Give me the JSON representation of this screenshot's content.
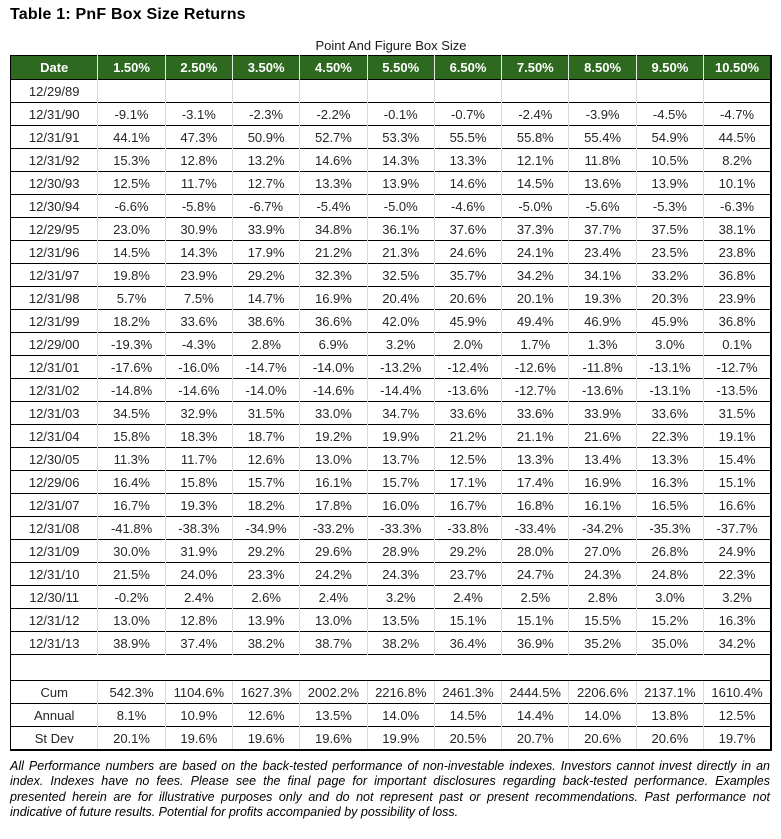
{
  "page_title": "Table 1: PnF Box Size Returns",
  "table": {
    "subtitle": "Point And Figure Box Size",
    "columns": [
      "Date",
      "1.50%",
      "2.50%",
      "3.50%",
      "4.50%",
      "5.50%",
      "6.50%",
      "7.50%",
      "8.50%",
      "9.50%",
      "10.50%"
    ],
    "rows": [
      {
        "date": "12/29/89",
        "values": [
          "",
          "",
          "",
          "",
          "",
          "",
          "",
          "",
          "",
          ""
        ]
      },
      {
        "date": "12/31/90",
        "values": [
          "-9.1%",
          "-3.1%",
          "-2.3%",
          "-2.2%",
          "-0.1%",
          "-0.7%",
          "-2.4%",
          "-3.9%",
          "-4.5%",
          "-4.7%"
        ]
      },
      {
        "date": "12/31/91",
        "values": [
          "44.1%",
          "47.3%",
          "50.9%",
          "52.7%",
          "53.3%",
          "55.5%",
          "55.8%",
          "55.4%",
          "54.9%",
          "44.5%"
        ]
      },
      {
        "date": "12/31/92",
        "values": [
          "15.3%",
          "12.8%",
          "13.2%",
          "14.6%",
          "14.3%",
          "13.3%",
          "12.1%",
          "11.8%",
          "10.5%",
          "8.2%"
        ]
      },
      {
        "date": "12/30/93",
        "values": [
          "12.5%",
          "11.7%",
          "12.7%",
          "13.3%",
          "13.9%",
          "14.6%",
          "14.5%",
          "13.6%",
          "13.9%",
          "10.1%"
        ]
      },
      {
        "date": "12/30/94",
        "values": [
          "-6.6%",
          "-5.8%",
          "-6.7%",
          "-5.4%",
          "-5.0%",
          "-4.6%",
          "-5.0%",
          "-5.6%",
          "-5.3%",
          "-6.3%"
        ]
      },
      {
        "date": "12/29/95",
        "values": [
          "23.0%",
          "30.9%",
          "33.9%",
          "34.8%",
          "36.1%",
          "37.6%",
          "37.3%",
          "37.7%",
          "37.5%",
          "38.1%"
        ]
      },
      {
        "date": "12/31/96",
        "values": [
          "14.5%",
          "14.3%",
          "17.9%",
          "21.2%",
          "21.3%",
          "24.6%",
          "24.1%",
          "23.4%",
          "23.5%",
          "23.8%"
        ]
      },
      {
        "date": "12/31/97",
        "values": [
          "19.8%",
          "23.9%",
          "29.2%",
          "32.3%",
          "32.5%",
          "35.7%",
          "34.2%",
          "34.1%",
          "33.2%",
          "36.8%"
        ]
      },
      {
        "date": "12/31/98",
        "values": [
          "5.7%",
          "7.5%",
          "14.7%",
          "16.9%",
          "20.4%",
          "20.6%",
          "20.1%",
          "19.3%",
          "20.3%",
          "23.9%"
        ]
      },
      {
        "date": "12/31/99",
        "values": [
          "18.2%",
          "33.6%",
          "38.6%",
          "36.6%",
          "42.0%",
          "45.9%",
          "49.4%",
          "46.9%",
          "45.9%",
          "36.8%"
        ]
      },
      {
        "date": "12/29/00",
        "values": [
          "-19.3%",
          "-4.3%",
          "2.8%",
          "6.9%",
          "3.2%",
          "2.0%",
          "1.7%",
          "1.3%",
          "3.0%",
          "0.1%"
        ]
      },
      {
        "date": "12/31/01",
        "values": [
          "-17.6%",
          "-16.0%",
          "-14.7%",
          "-14.0%",
          "-13.2%",
          "-12.4%",
          "-12.6%",
          "-11.8%",
          "-13.1%",
          "-12.7%"
        ]
      },
      {
        "date": "12/31/02",
        "values": [
          "-14.8%",
          "-14.6%",
          "-14.0%",
          "-14.6%",
          "-14.4%",
          "-13.6%",
          "-12.7%",
          "-13.6%",
          "-13.1%",
          "-13.5%"
        ]
      },
      {
        "date": "12/31/03",
        "values": [
          "34.5%",
          "32.9%",
          "31.5%",
          "33.0%",
          "34.7%",
          "33.6%",
          "33.6%",
          "33.9%",
          "33.6%",
          "31.5%"
        ]
      },
      {
        "date": "12/31/04",
        "values": [
          "15.8%",
          "18.3%",
          "18.7%",
          "19.2%",
          "19.9%",
          "21.2%",
          "21.1%",
          "21.6%",
          "22.3%",
          "19.1%"
        ]
      },
      {
        "date": "12/30/05",
        "values": [
          "11.3%",
          "11.7%",
          "12.6%",
          "13.0%",
          "13.7%",
          "12.5%",
          "13.3%",
          "13.4%",
          "13.3%",
          "15.4%"
        ]
      },
      {
        "date": "12/29/06",
        "values": [
          "16.4%",
          "15.8%",
          "15.7%",
          "16.1%",
          "15.7%",
          "17.1%",
          "17.4%",
          "16.9%",
          "16.3%",
          "15.1%"
        ]
      },
      {
        "date": "12/31/07",
        "values": [
          "16.7%",
          "19.3%",
          "18.2%",
          "17.8%",
          "16.0%",
          "16.7%",
          "16.8%",
          "16.1%",
          "16.5%",
          "16.6%"
        ]
      },
      {
        "date": "12/31/08",
        "values": [
          "-41.8%",
          "-38.3%",
          "-34.9%",
          "-33.2%",
          "-33.3%",
          "-33.8%",
          "-33.4%",
          "-34.2%",
          "-35.3%",
          "-37.7%"
        ]
      },
      {
        "date": "12/31/09",
        "values": [
          "30.0%",
          "31.9%",
          "29.2%",
          "29.6%",
          "28.9%",
          "29.2%",
          "28.0%",
          "27.0%",
          "26.8%",
          "24.9%"
        ]
      },
      {
        "date": "12/31/10",
        "values": [
          "21.5%",
          "24.0%",
          "23.3%",
          "24.2%",
          "24.3%",
          "23.7%",
          "24.7%",
          "24.3%",
          "24.8%",
          "22.3%"
        ]
      },
      {
        "date": "12/30/11",
        "values": [
          "-0.2%",
          "2.4%",
          "2.6%",
          "2.4%",
          "3.2%",
          "2.4%",
          "2.5%",
          "2.8%",
          "3.0%",
          "3.2%"
        ]
      },
      {
        "date": "12/31/12",
        "values": [
          "13.0%",
          "12.8%",
          "13.9%",
          "13.0%",
          "13.5%",
          "15.1%",
          "15.1%",
          "15.5%",
          "15.2%",
          "16.3%"
        ]
      },
      {
        "date": "12/31/13",
        "values": [
          "38.9%",
          "37.4%",
          "38.2%",
          "38.7%",
          "38.2%",
          "36.4%",
          "36.9%",
          "35.2%",
          "35.0%",
          "34.2%"
        ]
      }
    ],
    "summary_rows": [
      {
        "label": "Cum",
        "values": [
          "542.3%",
          "1104.6%",
          "1627.3%",
          "2002.2%",
          "2216.8%",
          "2461.3%",
          "2444.5%",
          "2206.6%",
          "2137.1%",
          "1610.4%"
        ]
      },
      {
        "label": "Annual",
        "values": [
          "8.1%",
          "10.9%",
          "12.6%",
          "13.5%",
          "14.0%",
          "14.5%",
          "14.4%",
          "14.0%",
          "13.8%",
          "12.5%"
        ]
      },
      {
        "label": "St Dev",
        "values": [
          "20.1%",
          "19.6%",
          "19.6%",
          "19.6%",
          "19.9%",
          "20.5%",
          "20.7%",
          "20.6%",
          "20.6%",
          "19.7%"
        ]
      }
    ]
  },
  "footnote": "All Performance numbers are based on the back-tested performance of non-investable indexes.  Investors cannot invest directly in an index. Indexes have no fees. Please see the final page for important disclosures regarding back-tested performance.  Examples presented herein are for illustrative purposes only and do not represent past or present recommendations.  Past performance not indicative of future results.  Potential for profits accompanied by possibility of loss.",
  "colors": {
    "header_bg": "#2d6a1f",
    "header_text": "#ffffff",
    "grid_vertical": "#d9d9d9",
    "row_border": "#000000"
  }
}
